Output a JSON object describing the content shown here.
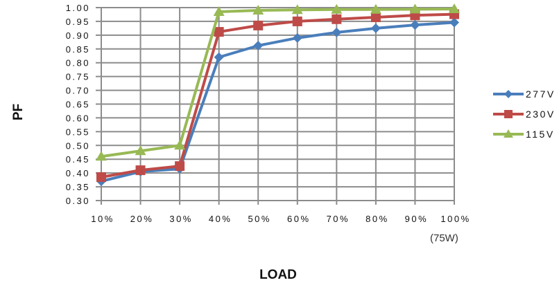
{
  "chart_data": {
    "type": "line",
    "title": "",
    "xlabel": "LOAD",
    "ylabel": "PF",
    "x_note": "(75W)",
    "categories": [
      "10%",
      "20%",
      "30%",
      "40%",
      "50%",
      "60%",
      "70%",
      "80%",
      "90%",
      "100%"
    ],
    "ylim": [
      0.3,
      1.0
    ],
    "y_ticks": [
      "0.30",
      "0.35",
      "0.40",
      "0.45",
      "0.50",
      "0.55",
      "0.60",
      "0.65",
      "0.70",
      "0.75",
      "0.80",
      "0.85",
      "0.90",
      "0.95",
      "1.00"
    ],
    "grid": true,
    "legend_position": "right",
    "series": [
      {
        "name": "277V",
        "color": "#4a7ebb",
        "marker": "diamond",
        "values": [
          0.37,
          0.405,
          0.415,
          0.82,
          0.862,
          0.89,
          0.91,
          0.925,
          0.937,
          0.946
        ]
      },
      {
        "name": "230V",
        "color": "#be4b48",
        "marker": "square",
        "values": [
          0.385,
          0.41,
          0.425,
          0.912,
          0.935,
          0.95,
          0.958,
          0.965,
          0.972,
          0.976
        ]
      },
      {
        "name": "115V",
        "color": "#98b954",
        "marker": "triangle",
        "values": [
          0.46,
          0.48,
          0.5,
          0.985,
          0.99,
          0.992,
          0.993,
          0.993,
          0.994,
          0.995
        ]
      }
    ]
  }
}
